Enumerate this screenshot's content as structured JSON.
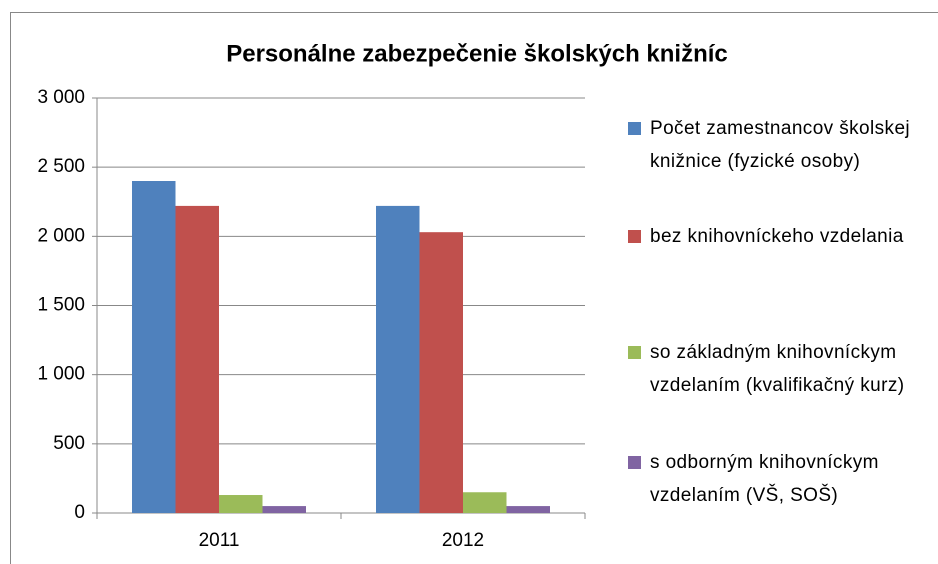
{
  "chart_data": {
    "type": "bar",
    "title": "Personálne zabezpečenie školských knižníc",
    "categories": [
      "2011",
      "2012"
    ],
    "series": [
      {
        "name": "Počet zamestnancov školskej knižnice (fyzické osoby)",
        "color": "#4f81bd",
        "values": [
          2400,
          2220
        ]
      },
      {
        "name": "bez knihovníckeho vzdelania",
        "color": "#c0504d",
        "values": [
          2220,
          2030
        ]
      },
      {
        "name": "so základným knihovníckym vzdelaním (kvalifikačný kurz)",
        "color": "#9bbb59",
        "values": [
          130,
          150
        ]
      },
      {
        "name": "s odborným knihovníckym vzdelaním (VŠ, SOŠ)",
        "color": "#8064a2",
        "values": [
          50,
          50
        ]
      }
    ],
    "ylim": [
      0,
      3000
    ],
    "yticks": [
      0,
      500,
      {
        "value": 1000,
        "label": "1 000"
      },
      {
        "value": 1500,
        "label": "1 500"
      },
      {
        "value": 2000,
        "label": "2 000"
      },
      {
        "value": 2500,
        "label": "2 500"
      },
      {
        "value": 3000,
        "label": "3 000"
      }
    ],
    "grid": true,
    "legend": "right"
  }
}
